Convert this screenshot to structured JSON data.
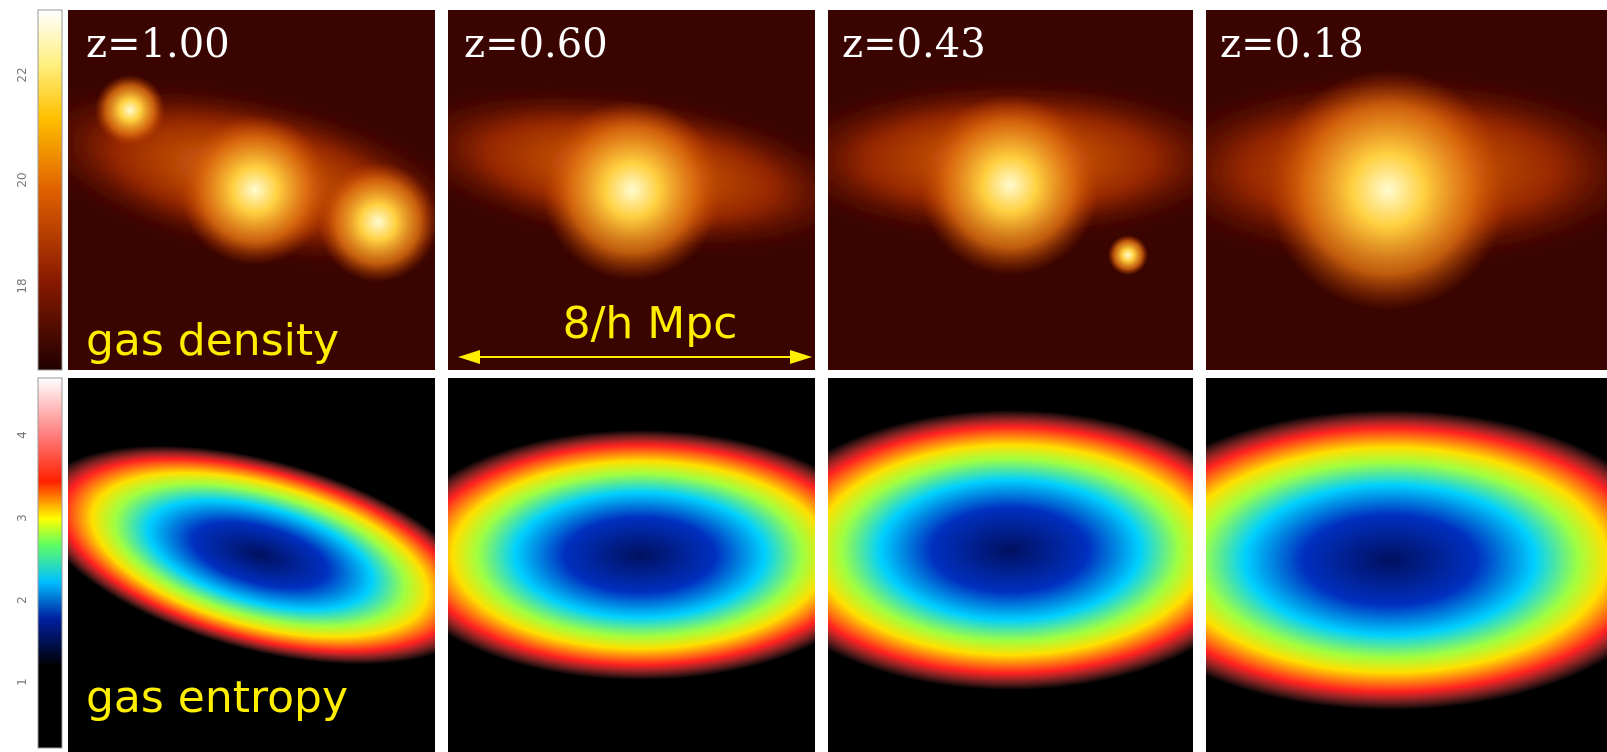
{
  "colorbars": {
    "density": {
      "ticks": [
        22,
        20,
        18
      ]
    },
    "entropy": {
      "ticks": [
        4,
        3,
        2,
        1
      ]
    }
  },
  "panels": [
    {
      "label": "z=1.00"
    },
    {
      "label": "z=0.60"
    },
    {
      "label": "z=0.43"
    },
    {
      "label": "z=0.18"
    }
  ],
  "rows": [
    {
      "label": "gas density"
    },
    {
      "label": "gas entropy"
    }
  ],
  "scale_bar": {
    "label": "8/h Mpc"
  }
}
